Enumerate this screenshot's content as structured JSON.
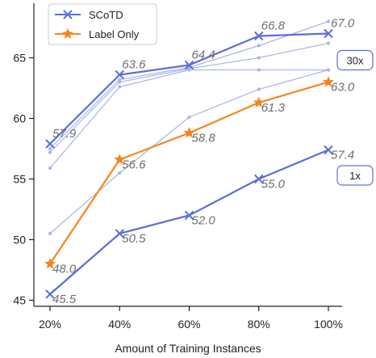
{
  "chart_data": {
    "type": "line",
    "title": "",
    "xlabel": "Amount of Training Instances",
    "ylabel": "",
    "categories": [
      "20%",
      "40%",
      "60%",
      "80%",
      "100%"
    ],
    "ylim": [
      44.5,
      69.5
    ],
    "yticks": [
      45,
      50,
      55,
      60,
      65
    ],
    "legend_position": "top-left",
    "grid": false,
    "series": [
      {
        "name": "SCoTD",
        "group": "30x",
        "color": "#5b6fd6",
        "marker": "x",
        "emphasis": true,
        "labels": true,
        "values": [
          57.9,
          63.6,
          64.4,
          66.8,
          67.0
        ]
      },
      {
        "name": "SCoTD",
        "group": "1x",
        "color": "#5b6fd6",
        "marker": "x",
        "emphasis": true,
        "labels": true,
        "values": [
          45.5,
          50.5,
          52.0,
          55.0,
          57.4
        ]
      },
      {
        "name": "Label Only",
        "color": "#f5851f",
        "marker": "star",
        "emphasis": true,
        "labels": true,
        "values": [
          48.0,
          56.6,
          58.8,
          61.3,
          63.0
        ]
      },
      {
        "name": "",
        "color": "#a9b4e8",
        "marker": "dot",
        "emphasis": false,
        "labels": false,
        "values": [
          55.9,
          62.6,
          64.0,
          64.0,
          64.0
        ]
      },
      {
        "name": "",
        "color": "#a9b4e8",
        "marker": "dot",
        "emphasis": false,
        "labels": false,
        "values": [
          57.5,
          63.2,
          64.2,
          66.0,
          68.0
        ]
      },
      {
        "name": "",
        "color": "#a9b4e8",
        "marker": "dot",
        "emphasis": false,
        "labels": false,
        "values": [
          57.2,
          63.0,
          64.1,
          65.0,
          66.2
        ]
      },
      {
        "name": "",
        "color": "#a9b4e8",
        "marker": "dot",
        "emphasis": false,
        "labels": false,
        "values": [
          50.5,
          55.5,
          60.1,
          62.4,
          64.0
        ]
      }
    ],
    "legend": [
      {
        "label": "SCoTD",
        "color": "#5b6fd6",
        "marker": "x"
      },
      {
        "label": "Label Only",
        "color": "#f5851f",
        "marker": "star"
      }
    ],
    "annotations": [
      {
        "text": "30x",
        "attach_value": 65.0
      },
      {
        "text": "1x",
        "attach_value": 55.5
      }
    ]
  }
}
